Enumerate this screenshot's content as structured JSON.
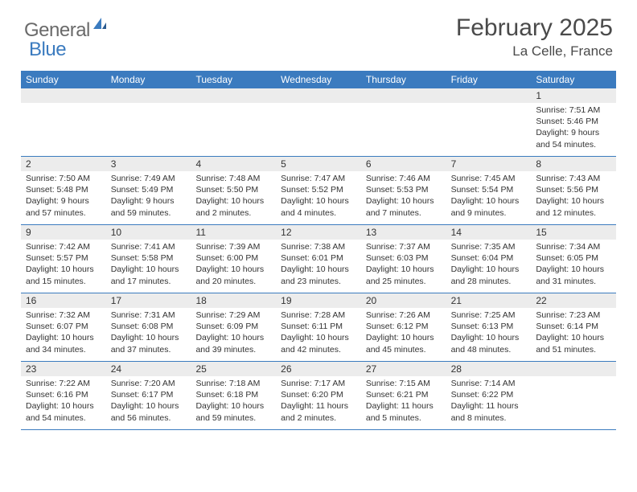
{
  "logo": {
    "text1": "General",
    "text2": "Blue"
  },
  "title": "February 2025",
  "location": "La Celle, France",
  "colors": {
    "header_bg": "#3b7bbf",
    "header_text": "#ffffff",
    "daynum_bg": "#ececec",
    "text": "#333333",
    "logo_gray": "#6a6a6a",
    "logo_blue": "#3b7bbf",
    "border": "#3b7bbf"
  },
  "dayNames": [
    "Sunday",
    "Monday",
    "Tuesday",
    "Wednesday",
    "Thursday",
    "Friday",
    "Saturday"
  ],
  "weeks": [
    [
      {
        "n": "",
        "sr": "",
        "ss": "",
        "dl": ""
      },
      {
        "n": "",
        "sr": "",
        "ss": "",
        "dl": ""
      },
      {
        "n": "",
        "sr": "",
        "ss": "",
        "dl": ""
      },
      {
        "n": "",
        "sr": "",
        "ss": "",
        "dl": ""
      },
      {
        "n": "",
        "sr": "",
        "ss": "",
        "dl": ""
      },
      {
        "n": "",
        "sr": "",
        "ss": "",
        "dl": ""
      },
      {
        "n": "1",
        "sr": "Sunrise: 7:51 AM",
        "ss": "Sunset: 5:46 PM",
        "dl": "Daylight: 9 hours and 54 minutes."
      }
    ],
    [
      {
        "n": "2",
        "sr": "Sunrise: 7:50 AM",
        "ss": "Sunset: 5:48 PM",
        "dl": "Daylight: 9 hours and 57 minutes."
      },
      {
        "n": "3",
        "sr": "Sunrise: 7:49 AM",
        "ss": "Sunset: 5:49 PM",
        "dl": "Daylight: 9 hours and 59 minutes."
      },
      {
        "n": "4",
        "sr": "Sunrise: 7:48 AM",
        "ss": "Sunset: 5:50 PM",
        "dl": "Daylight: 10 hours and 2 minutes."
      },
      {
        "n": "5",
        "sr": "Sunrise: 7:47 AM",
        "ss": "Sunset: 5:52 PM",
        "dl": "Daylight: 10 hours and 4 minutes."
      },
      {
        "n": "6",
        "sr": "Sunrise: 7:46 AM",
        "ss": "Sunset: 5:53 PM",
        "dl": "Daylight: 10 hours and 7 minutes."
      },
      {
        "n": "7",
        "sr": "Sunrise: 7:45 AM",
        "ss": "Sunset: 5:54 PM",
        "dl": "Daylight: 10 hours and 9 minutes."
      },
      {
        "n": "8",
        "sr": "Sunrise: 7:43 AM",
        "ss": "Sunset: 5:56 PM",
        "dl": "Daylight: 10 hours and 12 minutes."
      }
    ],
    [
      {
        "n": "9",
        "sr": "Sunrise: 7:42 AM",
        "ss": "Sunset: 5:57 PM",
        "dl": "Daylight: 10 hours and 15 minutes."
      },
      {
        "n": "10",
        "sr": "Sunrise: 7:41 AM",
        "ss": "Sunset: 5:58 PM",
        "dl": "Daylight: 10 hours and 17 minutes."
      },
      {
        "n": "11",
        "sr": "Sunrise: 7:39 AM",
        "ss": "Sunset: 6:00 PM",
        "dl": "Daylight: 10 hours and 20 minutes."
      },
      {
        "n": "12",
        "sr": "Sunrise: 7:38 AM",
        "ss": "Sunset: 6:01 PM",
        "dl": "Daylight: 10 hours and 23 minutes."
      },
      {
        "n": "13",
        "sr": "Sunrise: 7:37 AM",
        "ss": "Sunset: 6:03 PM",
        "dl": "Daylight: 10 hours and 25 minutes."
      },
      {
        "n": "14",
        "sr": "Sunrise: 7:35 AM",
        "ss": "Sunset: 6:04 PM",
        "dl": "Daylight: 10 hours and 28 minutes."
      },
      {
        "n": "15",
        "sr": "Sunrise: 7:34 AM",
        "ss": "Sunset: 6:05 PM",
        "dl": "Daylight: 10 hours and 31 minutes."
      }
    ],
    [
      {
        "n": "16",
        "sr": "Sunrise: 7:32 AM",
        "ss": "Sunset: 6:07 PM",
        "dl": "Daylight: 10 hours and 34 minutes."
      },
      {
        "n": "17",
        "sr": "Sunrise: 7:31 AM",
        "ss": "Sunset: 6:08 PM",
        "dl": "Daylight: 10 hours and 37 minutes."
      },
      {
        "n": "18",
        "sr": "Sunrise: 7:29 AM",
        "ss": "Sunset: 6:09 PM",
        "dl": "Daylight: 10 hours and 39 minutes."
      },
      {
        "n": "19",
        "sr": "Sunrise: 7:28 AM",
        "ss": "Sunset: 6:11 PM",
        "dl": "Daylight: 10 hours and 42 minutes."
      },
      {
        "n": "20",
        "sr": "Sunrise: 7:26 AM",
        "ss": "Sunset: 6:12 PM",
        "dl": "Daylight: 10 hours and 45 minutes."
      },
      {
        "n": "21",
        "sr": "Sunrise: 7:25 AM",
        "ss": "Sunset: 6:13 PM",
        "dl": "Daylight: 10 hours and 48 minutes."
      },
      {
        "n": "22",
        "sr": "Sunrise: 7:23 AM",
        "ss": "Sunset: 6:14 PM",
        "dl": "Daylight: 10 hours and 51 minutes."
      }
    ],
    [
      {
        "n": "23",
        "sr": "Sunrise: 7:22 AM",
        "ss": "Sunset: 6:16 PM",
        "dl": "Daylight: 10 hours and 54 minutes."
      },
      {
        "n": "24",
        "sr": "Sunrise: 7:20 AM",
        "ss": "Sunset: 6:17 PM",
        "dl": "Daylight: 10 hours and 56 minutes."
      },
      {
        "n": "25",
        "sr": "Sunrise: 7:18 AM",
        "ss": "Sunset: 6:18 PM",
        "dl": "Daylight: 10 hours and 59 minutes."
      },
      {
        "n": "26",
        "sr": "Sunrise: 7:17 AM",
        "ss": "Sunset: 6:20 PM",
        "dl": "Daylight: 11 hours and 2 minutes."
      },
      {
        "n": "27",
        "sr": "Sunrise: 7:15 AM",
        "ss": "Sunset: 6:21 PM",
        "dl": "Daylight: 11 hours and 5 minutes."
      },
      {
        "n": "28",
        "sr": "Sunrise: 7:14 AM",
        "ss": "Sunset: 6:22 PM",
        "dl": "Daylight: 11 hours and 8 minutes."
      },
      {
        "n": "",
        "sr": "",
        "ss": "",
        "dl": ""
      }
    ]
  ]
}
